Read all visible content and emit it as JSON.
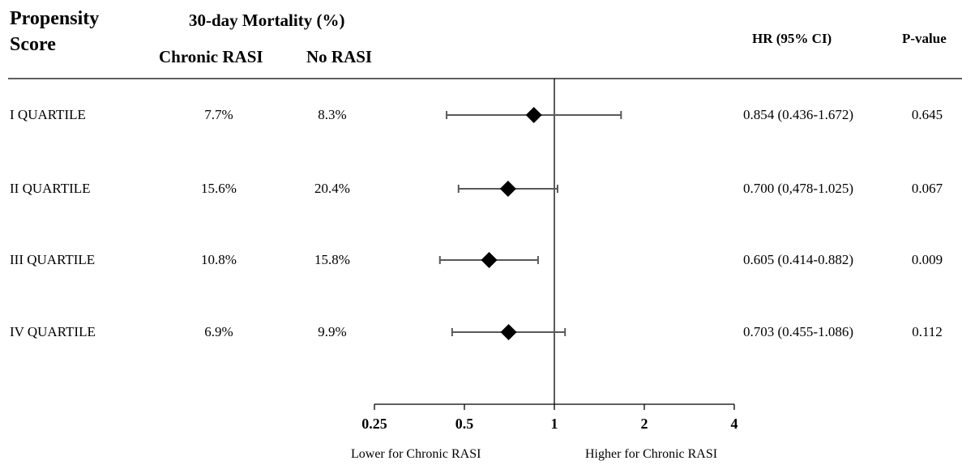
{
  "headers": {
    "score_line1": "Propensity",
    "score_line2": "Score",
    "mortality": "30-day Mortality (%)",
    "chronic": "Chronic RASI",
    "norasi": "No RASI",
    "hr": "HR (95% CI)",
    "pvalue": "P-value"
  },
  "rows": [
    {
      "label": "I QUARTILE",
      "chronic": "7.7%",
      "norasi": "8.3%",
      "hr_text": "0.854 (0.436-1.672)",
      "p": "0.645"
    },
    {
      "label": "II QUARTILE",
      "chronic": "15.6%",
      "norasi": "20.4%",
      "hr_text": "0.700 (0,478-1.025)",
      "p": "0.067"
    },
    {
      "label": "III QUARTILE",
      "chronic": "10.8%",
      "norasi": "15.8%",
      "hr_text": "0.605 (0.414-0.882)",
      "p": "0.009"
    },
    {
      "label": "IV QUARTILE",
      "chronic": "6.9%",
      "norasi": "9.9%",
      "hr_text": "0.703 (0.455-1.086)",
      "p": "0.112"
    }
  ],
  "axis": {
    "ticks": [
      "0.25",
      "0.5",
      "1",
      "2",
      "4"
    ],
    "lower_label": "Lower for Chronic RASI",
    "higher_label": "Higher for Chronic RASI"
  },
  "chart_data": {
    "type": "forest",
    "scale": "log2",
    "xlim": [
      0.25,
      4
    ],
    "reference_line": 1,
    "categories": [
      "I QUARTILE",
      "II QUARTILE",
      "III QUARTILE",
      "IV QUARTILE"
    ],
    "estimates": [
      0.854,
      0.7,
      0.605,
      0.703
    ],
    "ci_lower": [
      0.436,
      0.478,
      0.414,
      0.455
    ],
    "ci_upper": [
      1.672,
      1.025,
      0.882,
      1.086
    ],
    "tick_values": [
      0.25,
      0.5,
      1,
      2,
      4
    ],
    "colors": {
      "marker": "#000000",
      "whisker": "#595959"
    }
  }
}
